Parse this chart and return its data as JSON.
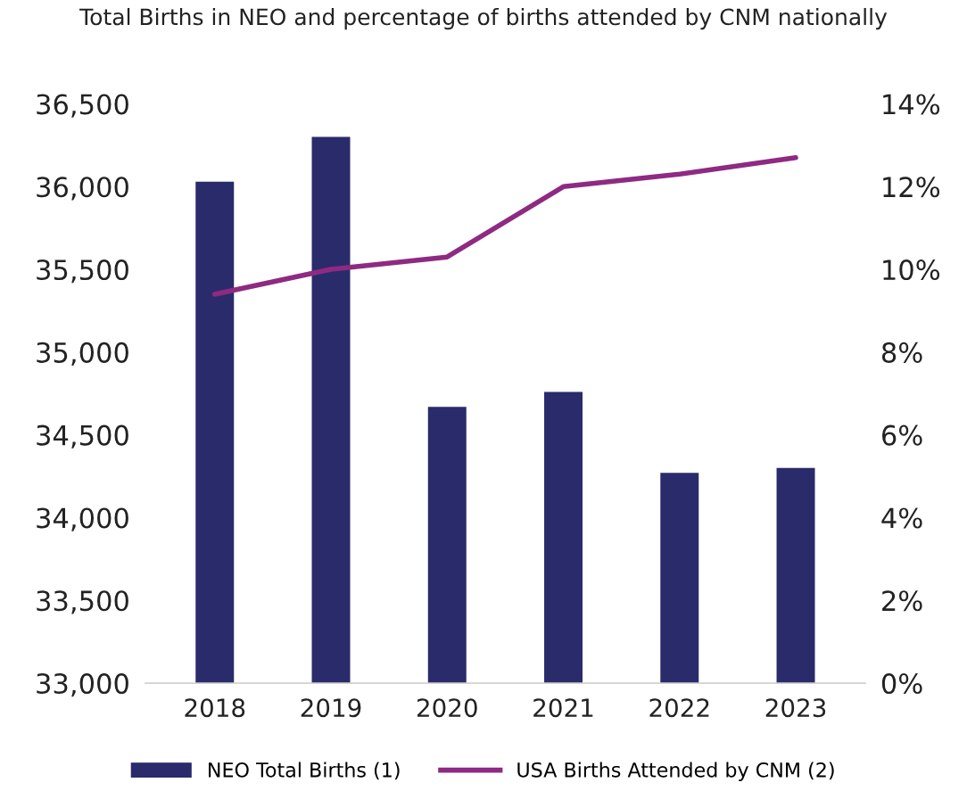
{
  "chart_data": {
    "type": "bar",
    "title": "Total Births in NEO and percentage of births attended by CNM nationally",
    "categories": [
      "2018",
      "2019",
      "2020",
      "2021",
      "2022",
      "2023"
    ],
    "series": [
      {
        "name": "NEO Total Births (1)",
        "color": "#2a2b6b",
        "values": [
          36030,
          36300,
          34670,
          34760,
          34270,
          34300
        ]
      },
      {
        "name": "USA Births Attended by CNM (2)",
        "type": "line",
        "axis": "y2",
        "color": "#8e2a82",
        "values": [
          9.4,
          10.0,
          10.3,
          12.0,
          12.3,
          12.7
        ]
      }
    ],
    "ylim": [
      33000,
      36500
    ],
    "yticks": [
      {
        "value": 33000,
        "label": "33,000"
      },
      {
        "value": 33500,
        "label": "33,500"
      },
      {
        "value": 34000,
        "label": "34,000"
      },
      {
        "value": 34500,
        "label": "34,500"
      },
      {
        "value": 35000,
        "label": "35,000"
      },
      {
        "value": 35500,
        "label": "35,500"
      },
      {
        "value": 36000,
        "label": "36,000"
      },
      {
        "value": 36500,
        "label": "36,500"
      }
    ],
    "y2lim": [
      0,
      14
    ],
    "y2ticks": [
      {
        "value": 0,
        "label": "0%"
      },
      {
        "value": 2,
        "label": "2%"
      },
      {
        "value": 4,
        "label": "4%"
      },
      {
        "value": 6,
        "label": "6%"
      },
      {
        "value": 8,
        "label": "8%"
      },
      {
        "value": 10,
        "label": "10%"
      },
      {
        "value": 12,
        "label": "12%"
      },
      {
        "value": 14,
        "label": "14%"
      }
    ],
    "legend": "bottom",
    "grid": false,
    "marker": "none",
    "line_style": "solid"
  }
}
